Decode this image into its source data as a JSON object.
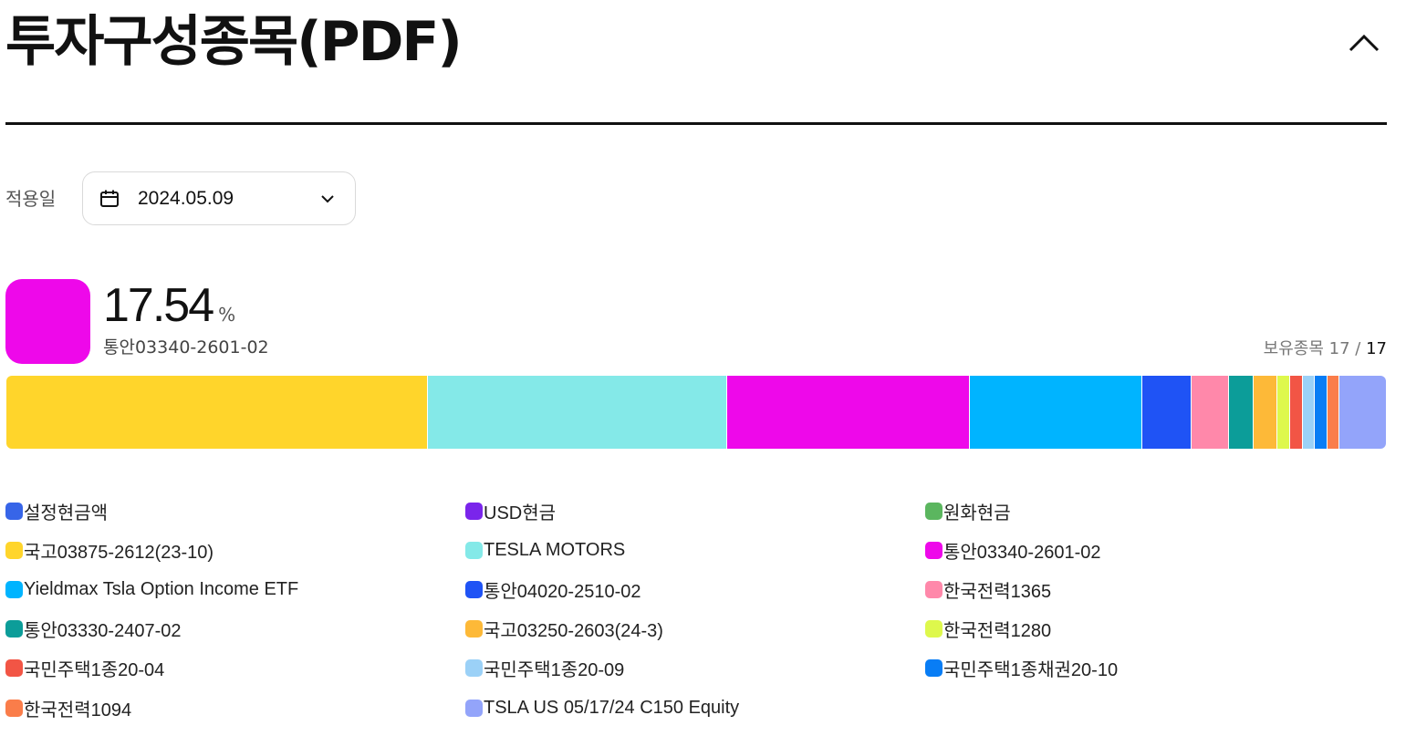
{
  "header": {
    "title": "투자구성종목(PDF)"
  },
  "date_filter": {
    "label": "적용일",
    "value": "2024.05.09"
  },
  "selected": {
    "percent": "17.54",
    "unit": "%",
    "name": "통안03340-2601-02",
    "color": "#EE08EA"
  },
  "holdings": {
    "label": "보유종목",
    "current": "17",
    "separator": "/",
    "total": "17"
  },
  "segments": [
    {
      "name": "국고03875-2612(23-10)",
      "weight": 30.5,
      "color": "#FFD52B"
    },
    {
      "name": "TESLA MOTORS",
      "weight": 21.7,
      "color": "#84E9E8"
    },
    {
      "name": "통안03340-2601-02",
      "weight": 17.54,
      "color": "#EE08EA"
    },
    {
      "name": "Yieldmax Tsla Option Income ETF",
      "weight": 12.5,
      "color": "#00B4FF"
    },
    {
      "name": "통안04020-2510-02",
      "weight": 3.6,
      "color": "#1F53F5"
    },
    {
      "name": "한국전력1365",
      "weight": 2.7,
      "color": "#FF88AA"
    },
    {
      "name": "통안03330-2407-02",
      "weight": 1.8,
      "color": "#0C9D99"
    },
    {
      "name": "국고03250-2603(24-3)",
      "weight": 1.75,
      "color": "#FDB938"
    },
    {
      "name": "한국전력1280",
      "weight": 0.9,
      "color": "#DEF84C"
    },
    {
      "name": "국민주택1종20-04",
      "weight": 0.9,
      "color": "#F25545"
    },
    {
      "name": "국민주택1종20-09",
      "weight": 0.9,
      "color": "#9BD1F7"
    },
    {
      "name": "국민주택1종채권20-10",
      "weight": 0.9,
      "color": "#087DF5"
    },
    {
      "name": "한국전력1094",
      "weight": 0.9,
      "color": "#FA7D4A"
    },
    {
      "name": "TSLA US 05/17/24 C150 Equity",
      "weight": 3.4,
      "color": "#93A4FA"
    }
  ],
  "legend": [
    {
      "label": "설정현금액",
      "color": "#3765E8"
    },
    {
      "label": "USD현금",
      "color": "#7A25EB"
    },
    {
      "label": "원화현금",
      "color": "#5BB65F"
    },
    {
      "label": "국고03875-2612(23-10)",
      "color": "#FFD52B"
    },
    {
      "label": "TESLA MOTORS",
      "color": "#84E9E8"
    },
    {
      "label": "통안03340-2601-02",
      "color": "#EE08EA"
    },
    {
      "label": "Yieldmax Tsla Option Income ETF",
      "color": "#00B4FF"
    },
    {
      "label": "통안04020-2510-02",
      "color": "#1F53F5"
    },
    {
      "label": "한국전력1365",
      "color": "#FF88AA"
    },
    {
      "label": "통안03330-2407-02",
      "color": "#0C9D99"
    },
    {
      "label": "국고03250-2603(24-3)",
      "color": "#FDB938"
    },
    {
      "label": "한국전력1280",
      "color": "#DEF84C"
    },
    {
      "label": "국민주택1종20-04",
      "color": "#F25545"
    },
    {
      "label": "국민주택1종20-09",
      "color": "#9BD1F7"
    },
    {
      "label": "국민주택1종채권20-10",
      "color": "#087DF5"
    },
    {
      "label": "한국전력1094",
      "color": "#FA7D4A"
    },
    {
      "label": "TSLA US 05/17/24 C150 Equity",
      "color": "#93A4FA"
    }
  ],
  "icons": {
    "collapse": "chevron-up-icon",
    "calendar": "calendar-icon",
    "dropdown": "chevron-down-icon"
  }
}
